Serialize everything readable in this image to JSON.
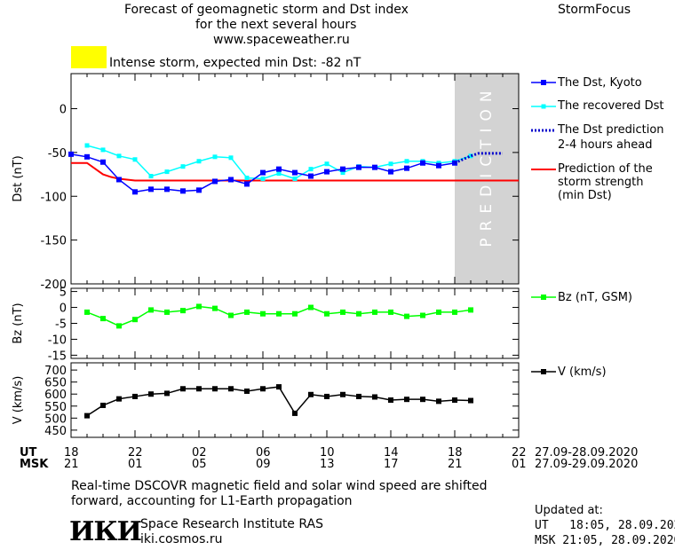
{
  "header": {
    "title_line1": "Forecast of geomagnetic storm and Dst index",
    "title_line2": "for the next several hours",
    "website": "www.spaceweather.ru",
    "brand": "StormFocus"
  },
  "alert": {
    "text": "Intense storm, expected min Dst: -82 nT",
    "color": "#ffff00"
  },
  "legend": {
    "dst_kyoto": "The Dst, Kyoto",
    "dst_recovered": "The recovered Dst",
    "dst_prediction_line1": "The Dst prediction",
    "dst_prediction_line2": "2-4 hours ahead",
    "storm_line1": "Prediction of the",
    "storm_line2": "storm strength",
    "storm_line3": "(min Dst)",
    "bz": "Bz (nT, GSM)",
    "v": "V (km/s)"
  },
  "prediction_label": "PREDICTION",
  "time_axis": {
    "ut_label": "UT",
    "msk_label": "MSK",
    "ut_ticks": [
      "18",
      "22",
      "02",
      "06",
      "10",
      "14",
      "18",
      "22"
    ],
    "msk_ticks": [
      "21",
      "01",
      "05",
      "09",
      "13",
      "17",
      "21",
      "01"
    ],
    "ut_range": "27.09-28.09.2020",
    "msk_range": "27.09-29.09.2020"
  },
  "footer": {
    "note_line1": "Real-time DSCOVR magnetic field and solar wind speed are shifted",
    "note_line2": "forward, accounting for L1-Earth propagation",
    "logo_text": "ИКИ",
    "institute": "Space Research Institute RAS",
    "institute_site": "iki.cosmos.ru",
    "updated_label": "Updated at:",
    "updated_ut": "UT   18:05, 28.09.2020",
    "updated_msk": "MSK 21:05, 28.09.2020"
  },
  "chart_data": [
    {
      "type": "line",
      "ylabel": "Dst (nT)",
      "xlim": [
        0,
        28
      ],
      "ylim": [
        -200,
        40
      ],
      "yticks": [
        0,
        -50,
        -100,
        -150,
        -200
      ],
      "prediction_shade_from": 24,
      "colors": {
        "kyoto": "#0000ff",
        "recovered": "#00ffff",
        "prediction": "#0000cc",
        "storm": "#ff0000",
        "shade": "#d3d3d3"
      },
      "series": [
        {
          "name": "The Dst, Kyoto",
          "x": [
            0,
            1,
            2,
            3,
            4,
            5,
            6,
            7,
            8,
            9,
            10,
            11,
            12,
            13,
            14,
            15,
            16,
            17,
            18,
            19,
            20,
            21,
            22,
            23,
            24
          ],
          "y": [
            -52,
            -55,
            -61,
            -81,
            -95,
            -92,
            -92,
            -94,
            -93,
            -83,
            -81,
            -86,
            -73,
            -69,
            -73,
            -77,
            -72,
            -69,
            -67,
            -67,
            -72,
            -68,
            -62,
            -65,
            -62
          ]
        },
        {
          "name": "The recovered Dst",
          "x": [
            1,
            2,
            3,
            4,
            5,
            6,
            7,
            8,
            9,
            10,
            11,
            12,
            13,
            14,
            15,
            16,
            17,
            18,
            19,
            20,
            21,
            22,
            23,
            24,
            25
          ],
          "y": [
            -42,
            -47,
            -54,
            -58,
            -77,
            -72,
            -66,
            -60,
            -55,
            -56,
            -79,
            -80,
            -74,
            -80,
            -69,
            -63,
            -73,
            -66,
            -67,
            -63,
            -60,
            -60,
            -62,
            -60,
            -54
          ]
        },
        {
          "name": "The Dst prediction",
          "x": [
            24,
            24.5,
            25,
            25.5,
            26,
            27
          ],
          "y": [
            -62,
            -58,
            -54,
            -51,
            -51,
            -51
          ]
        },
        {
          "name": "Prediction of the storm strength",
          "x": [
            0,
            1,
            2,
            2.5,
            3,
            4,
            5,
            6,
            28
          ],
          "y": [
            -62,
            -62,
            -75,
            -78,
            -80,
            -82,
            -82,
            -82,
            -82
          ]
        }
      ]
    },
    {
      "type": "line",
      "ylabel": "Bz (nT)",
      "xlim": [
        0,
        28
      ],
      "ylim": [
        -16,
        6
      ],
      "yticks": [
        5,
        0,
        -5,
        -10,
        -15
      ],
      "color": "#00ff00",
      "series": [
        {
          "name": "Bz (nT, GSM)",
          "x": [
            1,
            2,
            3,
            4,
            5,
            6,
            7,
            8,
            9,
            10,
            11,
            12,
            13,
            14,
            15,
            16,
            17,
            18,
            19,
            20,
            21,
            22,
            23,
            24,
            25
          ],
          "y": [
            -1.5,
            -3.5,
            -5.8,
            -3.8,
            -0.8,
            -1.5,
            -1,
            0.3,
            -0.3,
            -2.5,
            -1.5,
            -2,
            -2,
            -2,
            0,
            -2,
            -1.5,
            -2,
            -1.5,
            -1.5,
            -2.8,
            -2.5,
            -1.5,
            -1.5,
            -0.8
          ]
        }
      ]
    },
    {
      "type": "line",
      "ylabel": "V (km/s)",
      "xlim": [
        0,
        28
      ],
      "ylim": [
        420,
        730
      ],
      "yticks": [
        700,
        650,
        600,
        550,
        500,
        450
      ],
      "color": "#000000",
      "series": [
        {
          "name": "V (km/s)",
          "x": [
            1,
            2,
            3,
            4,
            5,
            6,
            7,
            8,
            9,
            10,
            11,
            12,
            13,
            14,
            15,
            16,
            17,
            18,
            19,
            20,
            21,
            22,
            23,
            24,
            25
          ],
          "y": [
            510,
            553,
            580,
            590,
            600,
            603,
            622,
            622,
            622,
            622,
            612,
            622,
            630,
            520,
            598,
            590,
            598,
            590,
            588,
            575,
            578,
            578,
            570,
            575,
            573
          ]
        }
      ]
    }
  ]
}
